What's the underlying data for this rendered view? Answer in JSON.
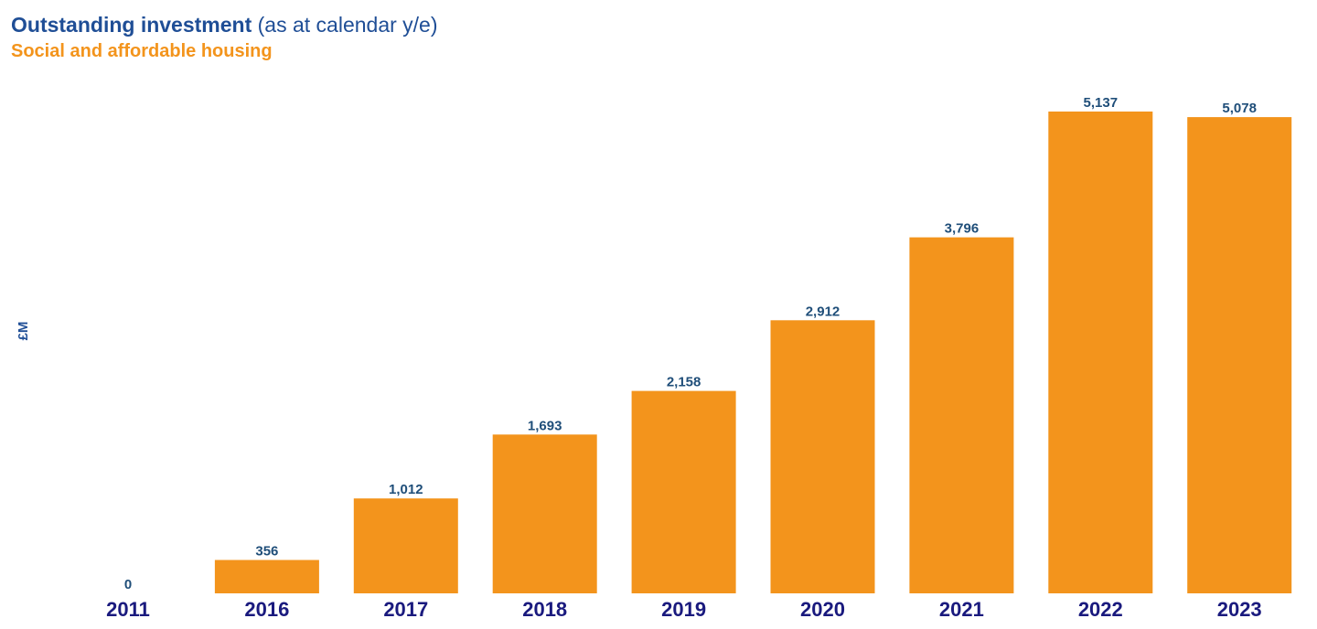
{
  "header": {
    "title_bold": "Outstanding investment",
    "title_rest": " (as at calendar y/e)",
    "subtitle": "Social and affordable housing"
  },
  "colors": {
    "bar": "#f3941c",
    "title": "#1f4e96",
    "subtitle": "#f3941c",
    "value_label": "#1f4e79",
    "category_label": "#1a1a7e"
  },
  "chart_data": {
    "type": "bar",
    "title": "Outstanding investment (as at calendar y/e)",
    "subtitle": "Social and affordable housing",
    "xlabel": "",
    "ylabel": "£M",
    "categories": [
      "2011",
      "2016",
      "2017",
      "2018",
      "2019",
      "2020",
      "2021",
      "2022",
      "2023"
    ],
    "values": [
      0,
      356,
      1012,
      1693,
      2158,
      2912,
      3796,
      5137,
      5078
    ],
    "value_labels": [
      "0",
      "356",
      "1,012",
      "1,693",
      "2,158",
      "2,912",
      "3,796",
      "5,137",
      "5,078"
    ],
    "ylim": [
      0,
      5137
    ],
    "grid": false,
    "legend": "none"
  }
}
